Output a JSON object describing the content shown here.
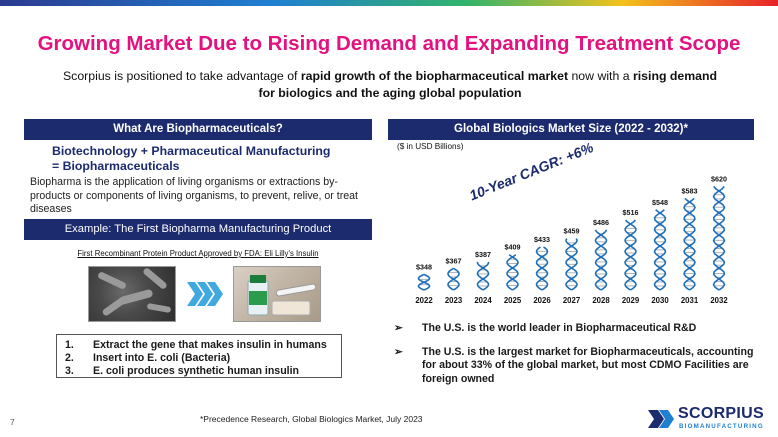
{
  "title": "Growing Market Due to Rising Demand and Expanding Treatment Scope",
  "subtitle": {
    "part1": "Scorpius is positioned to take advantage of ",
    "bold1": "rapid growth of the biopharmaceutical market",
    "part2": " now with a ",
    "bold2": "rising demand for biologics and the aging global population"
  },
  "left": {
    "header": "What Are Biopharmaceuticals?",
    "bio_head_line1": "Biotechnology + Pharmaceutical Manufacturing",
    "bio_head_line2": "= Biopharmaceuticals",
    "bio_text": "Biopharma is the application of living organisms or extractions by-products or components of living organisms, to prevent, relive, or treat diseases",
    "example": "Example: The First Biopharma Manufacturing Product",
    "first_product": "First Recombinant Protein Product Approved by FDA: Eli Lilly's Insulin",
    "steps": [
      {
        "num": "1.",
        "text": "Extract the gene that makes insulin in humans"
      },
      {
        "num": "2.",
        "text": "Insert into E. coli (Bacteria)"
      },
      {
        "num": "3.",
        "text": "E. coli produces synthetic human insulin"
      }
    ]
  },
  "right": {
    "header": "Global Biologics Market Size (2022 - 2032)*",
    "units": "($ in USD Billions)",
    "cagr": "10-Year CAGR: +6%",
    "bullets": [
      "The U.S. is the world leader in Biopharmaceutical R&D",
      "The U.S. is the largest market for Biopharmaceuticals, accounting for about 33% of the global market, but most CDMO Facilities are foreign owned"
    ]
  },
  "chart_data": {
    "type": "bar",
    "title": "Global Biologics Market Size (2022 - 2032)*",
    "ylabel": "($ in USD Billions)",
    "categories": [
      "2022",
      "2023",
      "2024",
      "2025",
      "2026",
      "2027",
      "2028",
      "2029",
      "2030",
      "2031",
      "2032"
    ],
    "values": [
      348,
      367,
      387,
      409,
      433,
      459,
      486,
      516,
      548,
      583,
      620
    ],
    "value_labels": [
      "$348",
      "$367",
      "$387",
      "$409",
      "$433",
      "$459",
      "$486",
      "$516",
      "$548",
      "$583",
      "$620"
    ],
    "ylim": [
      300,
      640
    ],
    "annotation": "10-Year CAGR: +6%"
  },
  "footnote": "*Precedence Research, Global Biologics Market, July 2023",
  "page_number": "7",
  "logo": {
    "name": "SCORPIUS",
    "sub": "BIOMANUFACTURING"
  },
  "colors": {
    "title": "#e3127e",
    "navy": "#1c2a6e",
    "helix": "#1f6fb8",
    "rung": "#9aa0a8"
  }
}
